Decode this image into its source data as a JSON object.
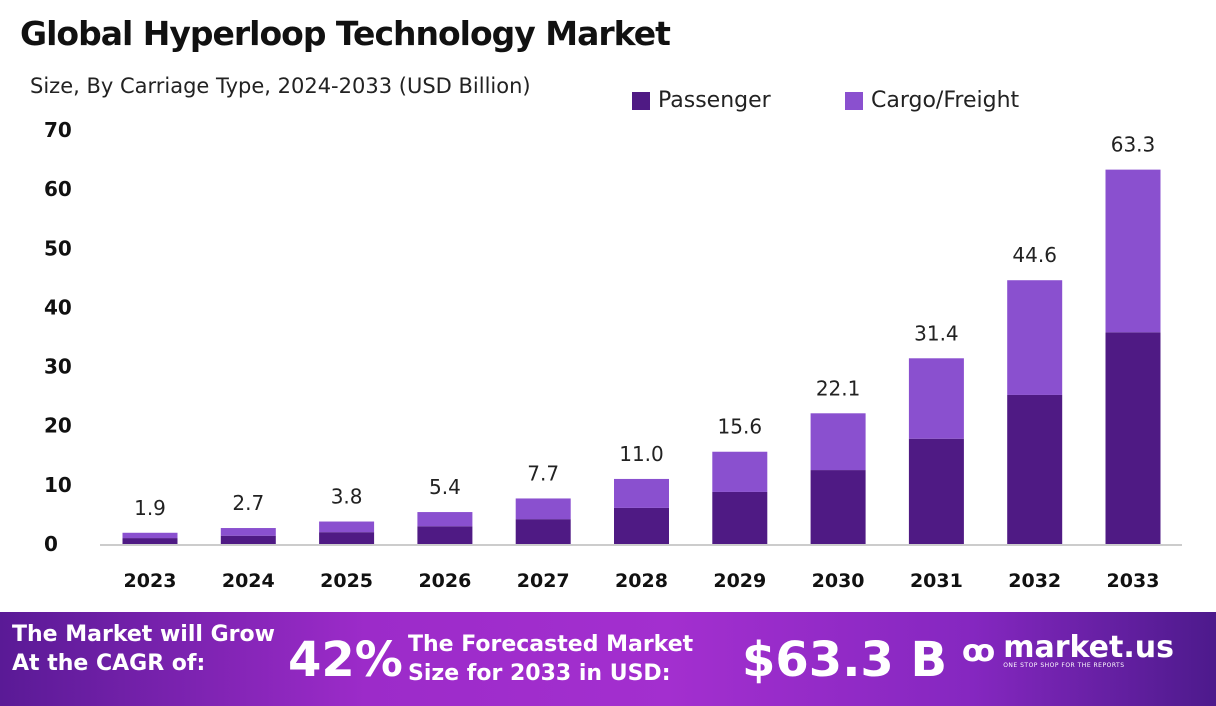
{
  "chart_data": {
    "type": "bar",
    "stacked": true,
    "title": "Global Hyperloop Technology Market",
    "subtitle": "Size, By Carriage Type, 2024-2033 (USD Billion)",
    "categories": [
      "2023",
      "2024",
      "2025",
      "2026",
      "2027",
      "2028",
      "2029",
      "2030",
      "2031",
      "2032",
      "2033"
    ],
    "series": [
      {
        "name": "Passenger",
        "color": "#4f1a84",
        "values": [
          1.0,
          1.4,
          2.0,
          3.0,
          4.2,
          6.1,
          8.8,
          12.5,
          17.8,
          25.2,
          35.8
        ]
      },
      {
        "name": "Cargo/Freight",
        "color": "#8a50cf",
        "values": [
          0.9,
          1.3,
          1.8,
          2.4,
          3.5,
          4.9,
          6.8,
          9.6,
          13.6,
          19.4,
          27.5
        ]
      }
    ],
    "totals": [
      "1.9",
      "2.7",
      "3.8",
      "5.4",
      "7.7",
      "11.0",
      "15.6",
      "22.1",
      "31.4",
      "44.6",
      "63.3"
    ],
    "yticks": [
      "0",
      "10",
      "20",
      "30",
      "40",
      "50",
      "60",
      "70"
    ],
    "ylim": [
      0,
      70
    ],
    "grid": false,
    "legend": "top-right"
  },
  "footer": {
    "cagr_text_1": "The Market will Grow",
    "cagr_text_2": "At the CAGR of:",
    "cagr_value": "42%",
    "forecast_text_1": "The Forecasted Market",
    "forecast_text_2": "Size for 2033 in USD:",
    "forecast_value": "$63.3 B",
    "logo_name": "market.us",
    "logo_tagline": "ONE STOP SHOP FOR THE REPORTS"
  }
}
